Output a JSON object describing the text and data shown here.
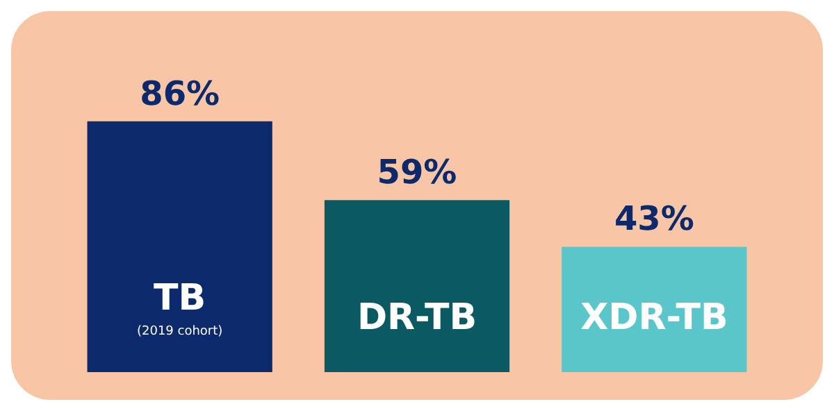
{
  "chart_data": {
    "type": "bar",
    "categories": [
      "TB\n(2019 cohort)",
      "DR-TB",
      "XDR-TB"
    ],
    "values": [
      86,
      59,
      43
    ],
    "colors": [
      "#0c2a6b",
      "#0b5a63",
      "#5bc6c9"
    ],
    "value_labels": [
      "86%",
      "59%",
      "43%"
    ]
  }
}
